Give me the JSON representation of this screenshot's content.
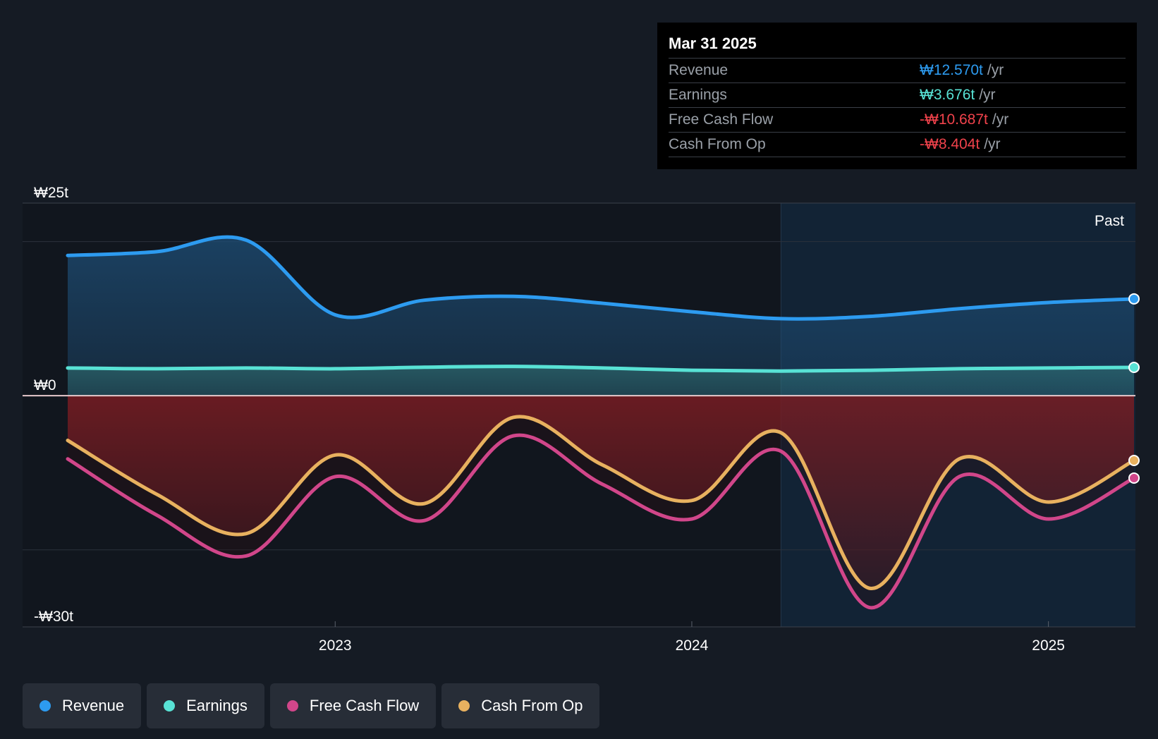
{
  "tooltip": {
    "date": "Mar 31 2025",
    "rows": [
      {
        "label": "Revenue",
        "value": "₩12.570t",
        "unit": "/yr",
        "color": "#2d9bf0"
      },
      {
        "label": "Earnings",
        "value": "₩3.676t",
        "unit": "/yr",
        "color": "#58e2d5"
      },
      {
        "label": "Free Cash Flow",
        "value": "-₩10.687t",
        "unit": "/yr",
        "color": "#f0424b"
      },
      {
        "label": "Cash From Op",
        "value": "-₩8.404t",
        "unit": "/yr",
        "color": "#f0424b"
      }
    ]
  },
  "legend": [
    {
      "label": "Revenue",
      "color": "#2d9bf0"
    },
    {
      "label": "Earnings",
      "color": "#58e2d5"
    },
    {
      "label": "Free Cash Flow",
      "color": "#d1468a"
    },
    {
      "label": "Cash From Op",
      "color": "#e8b15f"
    }
  ],
  "chart_data": {
    "type": "area",
    "y_tick_labels": [
      "₩25t",
      "₩0",
      "-₩30t"
    ],
    "ylim": [
      -30,
      25
    ],
    "past_label": "Past",
    "x_ticks": [
      {
        "label": "2023",
        "x": 2023.0
      },
      {
        "label": "2024",
        "x": 2024.0
      },
      {
        "label": "2025",
        "x": 2025.0
      }
    ],
    "xlim": [
      2022.12,
      2025.24
    ],
    "past_start": 2024.25,
    "series": [
      {
        "name": "Revenue",
        "color": "#2d9bf0",
        "x": [
          2022.25,
          2022.5,
          2022.75,
          2023.0,
          2023.25,
          2023.5,
          2023.75,
          2024.0,
          2024.25,
          2024.5,
          2024.75,
          2025.0,
          2025.24
        ],
        "y": [
          18.2,
          18.7,
          20.2,
          10.5,
          12.4,
          12.9,
          12.0,
          10.9,
          10.0,
          10.3,
          11.3,
          12.1,
          12.57
        ]
      },
      {
        "name": "Earnings",
        "color": "#58e2d5",
        "x": [
          2022.25,
          2022.5,
          2022.75,
          2023.0,
          2023.25,
          2023.5,
          2023.75,
          2024.0,
          2024.25,
          2024.5,
          2024.75,
          2025.0,
          2025.24
        ],
        "y": [
          3.6,
          3.5,
          3.6,
          3.5,
          3.7,
          3.8,
          3.6,
          3.3,
          3.2,
          3.3,
          3.5,
          3.6,
          3.676
        ]
      },
      {
        "name": "Free Cash Flow",
        "color": "#d1468a",
        "x": [
          2022.25,
          2022.5,
          2022.75,
          2023.0,
          2023.25,
          2023.5,
          2023.75,
          2024.0,
          2024.25,
          2024.5,
          2024.75,
          2025.0,
          2025.24
        ],
        "y": [
          -8.2,
          -15.5,
          -20.8,
          -10.5,
          -16.2,
          -5.2,
          -11.5,
          -16.0,
          -7.2,
          -27.5,
          -10.5,
          -16.0,
          -10.687
        ]
      },
      {
        "name": "Cash From Op",
        "color": "#e8b15f",
        "x": [
          2022.25,
          2022.5,
          2022.75,
          2023.0,
          2023.25,
          2023.5,
          2023.75,
          2024.0,
          2024.25,
          2024.5,
          2024.75,
          2025.0,
          2025.24
        ],
        "y": [
          -5.8,
          -12.8,
          -17.9,
          -7.7,
          -14.0,
          -2.8,
          -9.0,
          -13.6,
          -4.8,
          -25.0,
          -8.2,
          -13.8,
          -8.404
        ]
      }
    ]
  }
}
